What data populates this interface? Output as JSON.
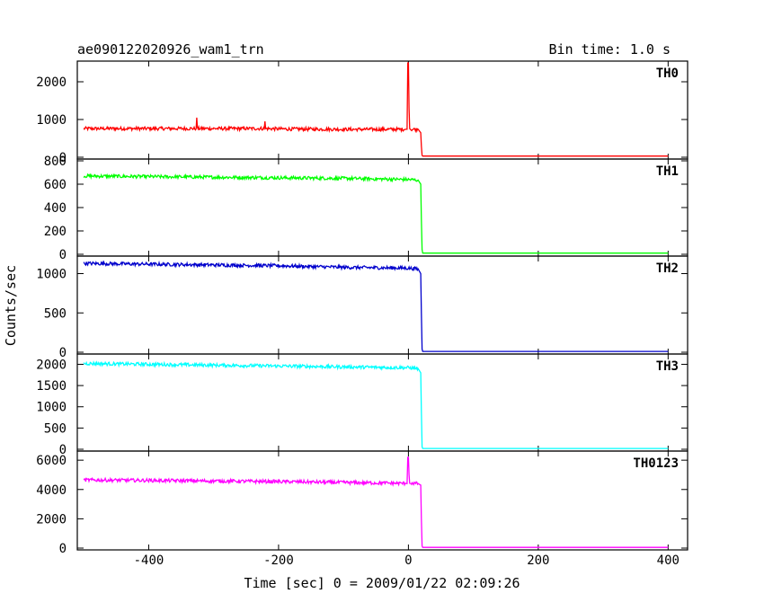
{
  "chart_data": {
    "type": "line",
    "title_left": "ae090122020926_wam1_trn",
    "title_right": "Bin time: 1.0 s",
    "xlabel": "Time [sec] 0 = 2009/01/22 02:09:26",
    "ylabel": "Counts/sec",
    "xlim": [
      -510,
      430
    ],
    "xticks": [
      -400,
      -200,
      0,
      200,
      400
    ],
    "grid": false,
    "panels": [
      {
        "name": "TH0",
        "color": "#ff0000",
        "ylim": [
          0,
          2500
        ],
        "yticks": [
          0,
          1000,
          2000
        ],
        "x": [
          -500,
          -400,
          -327,
          -326,
          -325,
          -300,
          -222,
          -221,
          -220,
          -200,
          -100,
          -5,
          -2,
          -1,
          0,
          1,
          2,
          5,
          15,
          19,
          20,
          21,
          22,
          100,
          200,
          300,
          400
        ],
        "y": [
          760,
          760,
          760,
          1050,
          760,
          760,
          760,
          950,
          760,
          750,
          740,
          740,
          740,
          2500,
          2500,
          1300,
          760,
          740,
          740,
          650,
          300,
          50,
          30,
          30,
          30,
          30,
          30
        ]
      },
      {
        "name": "TH1",
        "color": "#00ff00",
        "ylim": [
          0,
          800
        ],
        "yticks": [
          0,
          200,
          400,
          600,
          800
        ],
        "x": [
          -500,
          -400,
          -300,
          -200,
          -100,
          0,
          15,
          19,
          20,
          21,
          22,
          100,
          200,
          300,
          400
        ],
        "y": [
          670,
          665,
          660,
          655,
          650,
          640,
          635,
          600,
          300,
          40,
          10,
          10,
          10,
          10,
          10
        ]
      },
      {
        "name": "TH2",
        "color": "#0000cc",
        "ylim": [
          0,
          1200
        ],
        "yticks": [
          0,
          500,
          1000
        ],
        "x": [
          -500,
          -400,
          -300,
          -200,
          -100,
          0,
          15,
          19,
          20,
          21,
          22,
          100,
          200,
          300,
          400
        ],
        "y": [
          1130,
          1120,
          1110,
          1100,
          1080,
          1070,
          1060,
          1000,
          500,
          40,
          10,
          10,
          10,
          10,
          10
        ]
      },
      {
        "name": "TH3",
        "color": "#00ffff",
        "ylim": [
          0,
          2200
        ],
        "yticks": [
          0,
          500,
          1000,
          1500,
          2000
        ],
        "x": [
          -500,
          -400,
          -300,
          -200,
          -100,
          0,
          15,
          19,
          20,
          21,
          22,
          100,
          200,
          300,
          400
        ],
        "y": [
          2020,
          2000,
          1980,
          1960,
          1940,
          1920,
          1900,
          1800,
          900,
          60,
          20,
          20,
          20,
          20,
          20
        ]
      },
      {
        "name": "TH0123",
        "color": "#ff00ff",
        "ylim": [
          0,
          6500
        ],
        "yticks": [
          0,
          2000,
          4000,
          6000
        ],
        "x": [
          -500,
          -400,
          -300,
          -200,
          -100,
          -5,
          -2,
          -1,
          0,
          1,
          2,
          15,
          19,
          20,
          21,
          22,
          100,
          200,
          300,
          400
        ],
        "y": [
          4650,
          4620,
          4580,
          4540,
          4480,
          4420,
          4400,
          6200,
          6200,
          5000,
          4450,
          4400,
          4300,
          2000,
          150,
          50,
          50,
          50,
          50,
          50
        ]
      }
    ]
  }
}
